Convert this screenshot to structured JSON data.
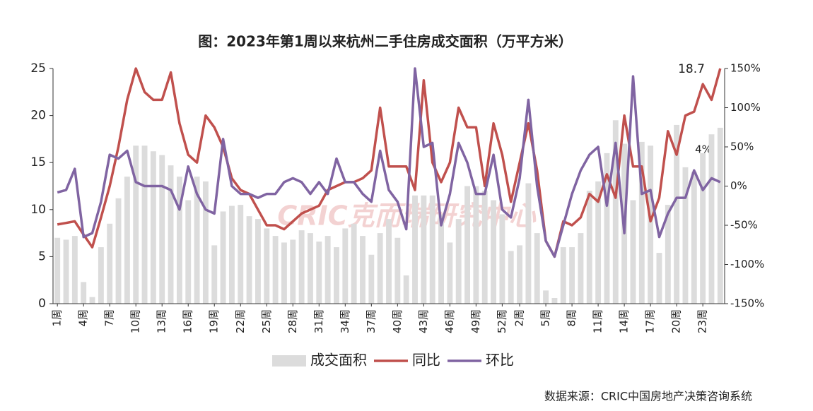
{
  "chart_data": {
    "type": "bar-line",
    "title": "图：2023年第1周以来杭州二手住房成交面积（万平方米）",
    "source": "数据来源：CRIC中国房地产决策咨询系统",
    "watermark": "CRIC克而瑞研究中心",
    "annotations": [
      "18.7",
      "4%"
    ],
    "categories": [
      "1周",
      null,
      null,
      "4周",
      null,
      null,
      "7周",
      null,
      null,
      "10周",
      null,
      null,
      "13周",
      null,
      null,
      "16周",
      null,
      null,
      "19周",
      null,
      null,
      "22周",
      null,
      null,
      "25周",
      null,
      null,
      "28周",
      null,
      null,
      "31周",
      null,
      null,
      "34周",
      null,
      null,
      "37周",
      null,
      null,
      "40周",
      null,
      null,
      "43周",
      null,
      null,
      "46周",
      null,
      null,
      "49周",
      null,
      null,
      "52周",
      null,
      "2周",
      null,
      null,
      "5周",
      null,
      null,
      "8周",
      null,
      null,
      "11周",
      null,
      null,
      "14周",
      null,
      null,
      "17周",
      null,
      null,
      "20周",
      null,
      null,
      "23周",
      null,
      null
    ],
    "series": [
      {
        "name": "成交面积",
        "type": "bar",
        "color": "#dcdcdc",
        "values": [
          7,
          6.8,
          7.2,
          2.3,
          0.7,
          6,
          8.5,
          11.2,
          13.5,
          16.8,
          16.8,
          16.2,
          15.8,
          14.7,
          13.5,
          11,
          13.5,
          13,
          6.2,
          9.8,
          10.4,
          10.5,
          9.3,
          9,
          8,
          7.2,
          6.5,
          6.8,
          7.8,
          7.5,
          6.6,
          7.2,
          6,
          8,
          8.5,
          7.2,
          5.2,
          7.5,
          9,
          7,
          3,
          11.5,
          11.5,
          11.5,
          9.5,
          6.5,
          9,
          12.5,
          12.5,
          12,
          11,
          9.5,
          5.6,
          6.2,
          12.8,
          7.5,
          1.4,
          0.6,
          6,
          6,
          7.5,
          12,
          13,
          16,
          19.5,
          17,
          11,
          17.2,
          16.8,
          5.4,
          10.5,
          19,
          14.5,
          14,
          16,
          18,
          18.7
        ]
      },
      {
        "name": "同比",
        "type": "line",
        "axis": "y2",
        "color": "#c0504d",
        "values": [
          -49,
          -47,
          -45,
          -62,
          -78,
          -40,
          0,
          50,
          110,
          150,
          120,
          110,
          110,
          145,
          80,
          40,
          30,
          90,
          75,
          50,
          10,
          -5,
          -10,
          -30,
          -50,
          -50,
          -55,
          -45,
          -35,
          -30,
          -25,
          -5,
          0,
          5,
          5,
          10,
          20,
          100,
          25,
          25,
          25,
          -5,
          135,
          30,
          5,
          30,
          100,
          75,
          75,
          0,
          80,
          40,
          -20,
          30,
          80,
          20,
          -70,
          -90,
          -45,
          -50,
          -40,
          -10,
          -20,
          15,
          -15,
          90,
          25,
          25,
          -45,
          -15,
          70,
          40,
          90,
          95,
          130,
          110,
          150
        ]
      },
      {
        "name": "环比",
        "type": "line",
        "axis": "y2",
        "color": "#8064a2",
        "values": [
          -8,
          -5,
          22,
          -65,
          -60,
          -20,
          40,
          35,
          45,
          5,
          0,
          0,
          0,
          -5,
          -30,
          25,
          -10,
          -30,
          -35,
          60,
          0,
          -10,
          -10,
          -15,
          -10,
          -10,
          5,
          10,
          5,
          -10,
          5,
          -10,
          35,
          5,
          5,
          -10,
          -20,
          45,
          -5,
          -20,
          -55,
          150,
          50,
          55,
          -50,
          -10,
          55,
          30,
          -10,
          -10,
          40,
          -30,
          -40,
          10,
          110,
          0,
          -70,
          -90,
          -50,
          -10,
          20,
          40,
          50,
          -25,
          55,
          -60,
          140,
          -10,
          -5,
          -65,
          -35,
          -15,
          -15,
          20,
          -5,
          10,
          5
        ]
      }
    ],
    "ylim": [
      0,
      25
    ],
    "yticks": [
      0,
      5,
      10,
      15,
      20,
      25
    ],
    "y2lim": [
      -150,
      150
    ],
    "y2ticks": [
      {
        "value": -150,
        "label": "-150%"
      },
      {
        "value": -100,
        "label": "-100%"
      },
      {
        "value": -50,
        "label": "-50%"
      },
      {
        "value": 0,
        "label": "0%"
      },
      {
        "value": 50,
        "label": "50%"
      },
      {
        "value": 100,
        "label": "100%"
      },
      {
        "value": 150,
        "label": "150%"
      }
    ],
    "legend": "bottom"
  }
}
